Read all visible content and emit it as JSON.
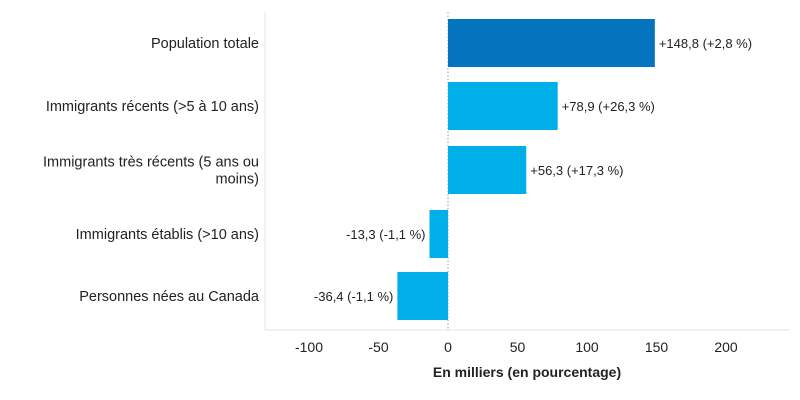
{
  "chart_data": {
    "type": "bar",
    "orientation": "horizontal",
    "categories": [
      "Population totale",
      "Immigrants récents (>5 à 10 ans)",
      "Immigrants très récents (5 ans ou moins)",
      "Immigrants établis (>10 ans)",
      "Personnes nées au Canada"
    ],
    "category_lines": [
      [
        "Population totale"
      ],
      [
        "Immigrants récents (>5 à 10 ans)"
      ],
      [
        "Immigrants très récents (5 ans ou",
        "moins)"
      ],
      [
        "Immigrants établis (>10 ans)"
      ],
      [
        "Personnes nées au Canada"
      ]
    ],
    "values": [
      148.8,
      78.9,
      56.3,
      -13.3,
      -36.4
    ],
    "data_labels": [
      "+148,8 (+2,8 %)",
      "+78,9 (+26,3 %)",
      "+56,3 (+17,3 %)",
      "-13,3 (-1,1 %)",
      "-36,4 (-1,1 %)"
    ],
    "bar_colors": [
      "#0574bf",
      "#00aee8",
      "#00aee8",
      "#00aee8",
      "#00aee8"
    ],
    "xlabel": "En milliers (en pourcentage)",
    "ylabel": "",
    "xlim": [
      -130,
      245
    ],
    "xticks": [
      -100,
      -50,
      0,
      50,
      100,
      150,
      200
    ],
    "grid": false,
    "legend": "none"
  }
}
